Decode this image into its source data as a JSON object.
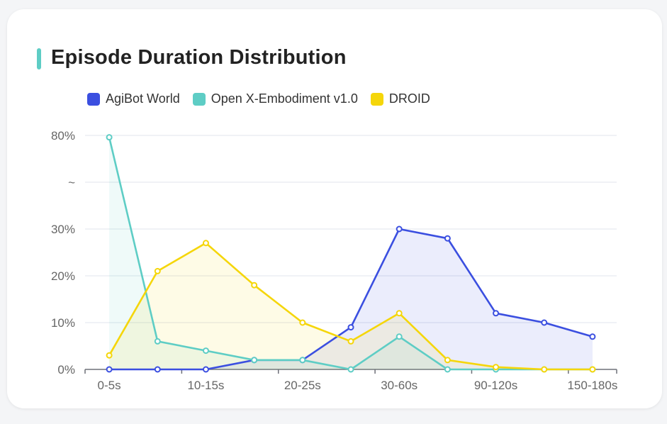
{
  "chart_data": {
    "type": "line",
    "title": "Episode Duration Distribution",
    "categories": [
      "0-5s",
      "",
      "10-15s",
      "",
      "20-25s",
      "",
      "30-60s",
      "",
      "90-120s",
      "",
      "150-180s"
    ],
    "y_ticks": [
      "0%",
      "10%",
      "20%",
      "30%",
      "~",
      "80%"
    ],
    "y_tick_values": [
      0,
      10,
      20,
      30,
      55,
      80
    ],
    "y_axis_break": "between 30% and 80%",
    "grid": true,
    "legend_position": "top-left",
    "area_fill": true,
    "series": [
      {
        "name": "AgiBot World",
        "color": "#3b4fe0",
        "values": [
          0,
          0,
          0,
          2,
          2,
          9,
          30,
          28,
          12,
          10,
          7
        ]
      },
      {
        "name": "Open X-Embodiment v1.0",
        "color": "#5ecdc5",
        "values": [
          79,
          6,
          4,
          2,
          2,
          0,
          7,
          0,
          0,
          0,
          0
        ]
      },
      {
        "name": "DROID",
        "color": "#f5d60a",
        "values": [
          3,
          21,
          27,
          18,
          10,
          6,
          12,
          2,
          0.5,
          0,
          0
        ]
      }
    ]
  }
}
